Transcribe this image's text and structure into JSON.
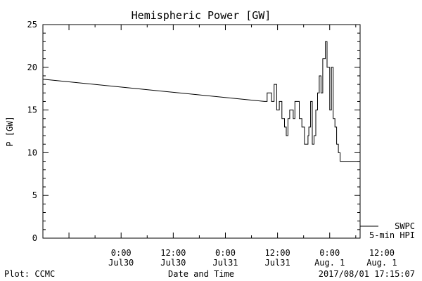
{
  "chart_data": {
    "type": "line",
    "title": "Hemispheric Power [GW]",
    "xlabel": "Date and Time",
    "ylabel": "P [GW]",
    "ylim": [
      0,
      25
    ],
    "xlim_hours": [
      -9,
      27.5
    ],
    "yticks": [
      "0",
      "5",
      "10",
      "15",
      "20",
      "25"
    ],
    "xticks": [
      {
        "hour": 0,
        "line1": "0:00",
        "line2": "Jul30"
      },
      {
        "hour": 6,
        "line1": "12:00",
        "line2": "Jul30"
      },
      {
        "hour": 12,
        "line1": "0:00",
        "line2": "Jul31"
      },
      {
        "hour": 18,
        "line1": "12:00",
        "line2": "Jul31"
      },
      {
        "hour": 24,
        "line1": "0:00",
        "line2": "Aug. 1"
      },
      {
        "hour": 30,
        "line1": "12:00",
        "line2": "Aug. 1"
      }
    ],
    "grid": false,
    "legend": {
      "position": "bottom-right",
      "line1": "SWPC",
      "line2": "5-min HPI"
    },
    "series": [
      {
        "name": "SWPC 5-min HPI",
        "color": "#000000",
        "x": [
          -9,
          16.5,
          16.8,
          17.0,
          17.3,
          17.6,
          17.9,
          18.1,
          18.2,
          18.5,
          18.8,
          19.0,
          19.2,
          19.4,
          19.6,
          19.8,
          20.0,
          20.3,
          20.5,
          20.8,
          21.1,
          21.3,
          21.5,
          21.6,
          21.8,
          22.0,
          22.2,
          22.4,
          22.6,
          22.8,
          23.0,
          23.2,
          23.5,
          23.7,
          24.0,
          24.2,
          24.4,
          24.6,
          24.8,
          25.0,
          25.2,
          25.5,
          25.7,
          26.0,
          26.2,
          26.4,
          26.6,
          26.8,
          27.0,
          27.2,
          27.4
        ],
        "y": [
          18.6,
          16,
          17,
          17,
          16,
          18,
          15,
          15,
          16,
          14,
          13,
          12,
          14,
          15,
          15,
          14,
          16,
          16,
          14,
          13,
          11,
          11,
          12,
          13,
          16,
          11,
          12,
          15,
          17,
          19,
          17,
          21,
          23,
          20,
          15,
          20,
          14,
          13,
          11,
          10,
          9,
          9,
          9,
          9,
          9,
          9,
          9,
          9,
          9,
          9,
          9
        ]
      }
    ]
  },
  "footer": {
    "left": "Plot: CCMC",
    "center": "Date and Time",
    "right": "2017/08/01 17:15:07"
  }
}
